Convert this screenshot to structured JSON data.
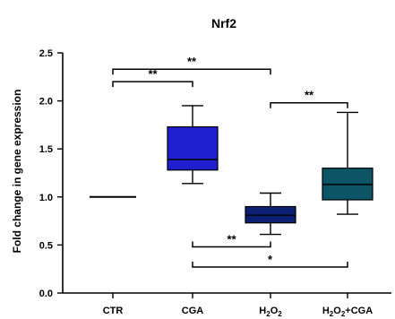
{
  "chart_data": {
    "type": "box",
    "title": "Nrf2",
    "xlabel": "",
    "ylabel": "Fold change in gene expression",
    "ylim": [
      0,
      2.5
    ],
    "yticks": [
      "0.0",
      "0.5",
      "1.0",
      "1.5",
      "2.0",
      "2.5"
    ],
    "categories": [
      "CTR",
      "CGA",
      "H2O2",
      "H2O2+CGA"
    ],
    "boxes": [
      {
        "category": "CTR",
        "min": 1.0,
        "q1": 1.0,
        "median": 1.0,
        "q3": 1.0,
        "max": 1.0,
        "color": "#000000"
      },
      {
        "category": "CGA",
        "min": 1.14,
        "q1": 1.28,
        "median": 1.39,
        "q3": 1.73,
        "max": 1.95,
        "color": "#1f1fd0"
      },
      {
        "category": "H2O2",
        "min": 0.61,
        "q1": 0.73,
        "median": 0.81,
        "q3": 0.9,
        "max": 1.04,
        "color": "#0b1f73"
      },
      {
        "category": "H2O2+CGA",
        "min": 0.82,
        "q1": 0.97,
        "median": 1.13,
        "q3": 1.3,
        "max": 1.88,
        "color": "#0b5566"
      }
    ],
    "significance": [
      {
        "from": "CTR",
        "to": "H2O2",
        "label": "**",
        "y": 2.33,
        "side": "above"
      },
      {
        "from": "CTR",
        "to": "CGA",
        "label": "**",
        "y": 2.2,
        "side": "above"
      },
      {
        "from": "H2O2",
        "to": "H2O2+CGA",
        "label": "**",
        "y": 1.98,
        "side": "above"
      },
      {
        "from": "CGA",
        "to": "H2O2",
        "label": "**",
        "y": 0.48,
        "side": "below"
      },
      {
        "from": "CGA",
        "to": "H2O2+CGA",
        "label": "*",
        "y": 0.27,
        "side": "below"
      }
    ]
  }
}
